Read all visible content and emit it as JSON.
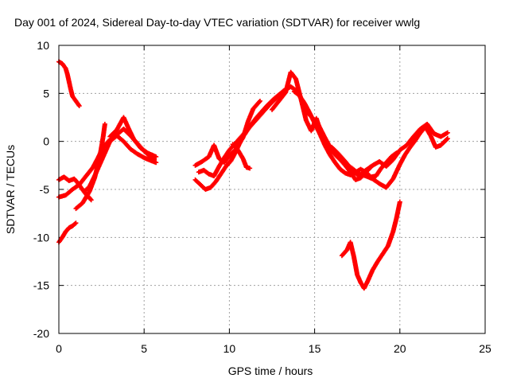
{
  "chart_data": {
    "type": "scatter",
    "title": "Day 001 of 2024, Sidereal Day-to-day VTEC variation (SDTVAR) for receiver wwlg",
    "xlabel": "GPS time / hours",
    "ylabel": "SDTVAR / TECUs",
    "xlim": [
      0,
      25
    ],
    "ylim": [
      -20,
      10
    ],
    "x_ticks": [
      0,
      5,
      10,
      15,
      20,
      25
    ],
    "y_ticks": [
      10,
      5,
      0,
      -5,
      -10,
      -15,
      -20
    ],
    "x_tick_labels": [
      "0",
      "5",
      "10",
      "15",
      "20",
      "25"
    ],
    "y_tick_labels": [
      "10",
      "5",
      "0",
      "-5",
      "-10",
      "-15",
      "-20"
    ],
    "grid": true,
    "marker": "plus",
    "color": "#ff0000",
    "series": [
      {
        "x": [
          0.0,
          0.2,
          0.4,
          0.5,
          0.6,
          0.7,
          0.8,
          1.0,
          1.2
        ],
        "y": [
          8.3,
          8.1,
          7.6,
          7.0,
          6.2,
          5.4,
          4.7,
          4.2,
          3.7
        ]
      },
      {
        "x": [
          0.0,
          0.2,
          0.4,
          0.6,
          0.8,
          1.0
        ],
        "y": [
          -10.5,
          -10.0,
          -9.4,
          -9.0,
          -8.8,
          -8.5
        ]
      },
      {
        "x": [
          0.0,
          0.3,
          0.6,
          0.9,
          1.1,
          1.3,
          1.5,
          1.7,
          1.9
        ],
        "y": [
          -4.0,
          -3.7,
          -4.1,
          -3.9,
          -4.3,
          -4.8,
          -5.3,
          -5.7,
          -6.1
        ]
      },
      {
        "x": [
          0.0,
          0.4,
          0.8,
          1.2,
          1.6,
          2.0,
          2.3,
          2.6,
          3.0,
          3.4,
          3.8,
          4.2,
          4.6,
          5.0,
          5.3,
          5.6
        ],
        "y": [
          -5.8,
          -5.6,
          -5.0,
          -4.5,
          -3.6,
          -2.7,
          -1.7,
          -0.6,
          0.2,
          0.7,
          1.3,
          0.6,
          -0.2,
          -1.0,
          -1.5,
          -1.9
        ]
      },
      {
        "x": [
          1.0,
          1.4,
          1.8,
          2.1,
          2.4,
          2.6,
          2.7
        ],
        "y": [
          -7.0,
          -6.4,
          -5.2,
          -3.8,
          -1.6,
          0.5,
          1.8
        ]
      },
      {
        "x": [
          1.5,
          1.8,
          2.1,
          2.4,
          2.7,
          3.0,
          3.4,
          3.8,
          4.2,
          4.6,
          5.0,
          5.4,
          5.7
        ],
        "y": [
          -5.2,
          -4.7,
          -3.6,
          -2.4,
          -1.2,
          0.0,
          0.6,
          0.0,
          -0.8,
          -1.3,
          -1.7,
          -2.0,
          -2.2
        ]
      },
      {
        "x": [
          3.0,
          3.4,
          3.8,
          4.1,
          4.4,
          4.8,
          5.2,
          5.7
        ],
        "y": [
          0.5,
          1.2,
          2.5,
          1.3,
          0.2,
          -0.7,
          -1.2,
          -1.6
        ]
      },
      {
        "x": [
          8.0,
          8.3,
          8.6,
          8.9,
          9.2,
          9.5,
          9.8,
          10.1,
          10.4,
          10.7,
          11.0,
          11.3,
          11.6,
          11.9,
          12.2,
          12.6,
          13.0,
          13.4
        ],
        "y": [
          -4.0,
          -4.5,
          -5.0,
          -4.8,
          -4.2,
          -3.4,
          -2.6,
          -2.0,
          -1.0,
          0.2,
          1.0,
          1.8,
          2.5,
          3.1,
          3.7,
          4.4,
          5.0,
          5.5
        ]
      },
      {
        "x": [
          8.0,
          8.4,
          8.8,
          9.1,
          9.4,
          9.7,
          10.0,
          10.4,
          10.8,
          11.1,
          11.4,
          11.8
        ],
        "y": [
          -2.5,
          -2.1,
          -1.6,
          -0.4,
          -1.8,
          -2.2,
          -1.5,
          -0.8,
          0.4,
          2.1,
          3.4,
          4.2
        ]
      },
      {
        "x": [
          8.2,
          8.5,
          8.8,
          9.1,
          9.4,
          9.7,
          10.0,
          10.4,
          10.8,
          11.2,
          11.6,
          12.0,
          12.4,
          12.8,
          13.2,
          13.6,
          14.0,
          14.3
        ],
        "y": [
          -3.2,
          -3.0,
          -3.4,
          -3.6,
          -2.6,
          -1.7,
          -0.9,
          -0.1,
          0.7,
          1.5,
          2.3,
          3.1,
          3.9,
          4.6,
          5.3,
          5.7,
          5.2,
          4.1
        ]
      },
      {
        "x": [
          10.2,
          10.5,
          10.8,
          11.0,
          11.2
        ],
        "y": [
          -0.3,
          -0.9,
          -1.8,
          -2.7,
          -2.8
        ]
      },
      {
        "x": [
          12.5,
          12.9,
          13.3,
          13.6,
          13.9,
          14.2,
          14.5,
          14.8,
          15.1,
          15.4
        ],
        "y": [
          3.3,
          4.2,
          5.1,
          7.2,
          6.5,
          4.4,
          2.2,
          1.1,
          2.4,
          0.8
        ]
      },
      {
        "x": [
          13.8,
          14.1,
          14.4,
          14.7,
          15.0,
          15.3,
          15.6,
          15.9,
          16.2,
          16.5,
          16.8,
          17.1,
          17.4,
          17.7,
          18.0,
          18.3,
          18.6,
          18.9,
          19.2,
          19.5,
          19.8
        ],
        "y": [
          5.2,
          4.8,
          4.0,
          3.0,
          1.9,
          0.8,
          -0.4,
          -1.4,
          -2.2,
          -2.9,
          -3.3,
          -3.5,
          -3.2,
          -2.9,
          -3.2,
          -3.7,
          -3.6,
          -2.8,
          -2.2,
          -1.6,
          -1.2
        ]
      },
      {
        "x": [
          14.5,
          14.8,
          15.2,
          15.6,
          16.0,
          16.4,
          16.8,
          17.2,
          17.6,
          18.0,
          18.4,
          18.8,
          19.2,
          19.6,
          20.0,
          20.3,
          20.6,
          20.9,
          21.2,
          21.5,
          21.8,
          22.1,
          22.4,
          22.8
        ],
        "y": [
          3.1,
          2.6,
          1.8,
          0.4,
          -0.9,
          -1.7,
          -2.3,
          -2.8,
          -3.4,
          -3.6,
          -3.9,
          -4.4,
          -4.8,
          -3.9,
          -2.4,
          -1.4,
          -0.6,
          0.1,
          0.9,
          1.5,
          0.6,
          -0.6,
          -0.4,
          0.3
        ]
      },
      {
        "x": [
          16.0,
          16.4,
          16.8,
          17.2,
          17.6,
          18.0,
          18.4,
          18.8,
          19.2,
          19.6,
          20.0,
          20.4,
          20.8,
          21.2,
          21.6,
          22.0,
          22.4,
          22.8
        ],
        "y": [
          -0.6,
          -1.3,
          -2.1,
          -3.0,
          -3.6,
          -3.0,
          -2.5,
          -2.1,
          -2.6,
          -1.9,
          -0.9,
          -0.4,
          0.5,
          1.3,
          1.8,
          0.8,
          0.5,
          0.9
        ]
      },
      {
        "x": [
          15.6,
          15.9,
          16.2,
          16.5,
          16.8,
          17.1,
          17.4,
          17.7,
          18.0,
          18.3
        ],
        "y": [
          -0.2,
          -0.8,
          -1.4,
          -1.9,
          -2.5,
          -3.2,
          -4.0,
          -3.8,
          -3.2,
          -2.7
        ]
      },
      {
        "x": [
          16.6,
          16.9,
          17.1,
          17.3,
          17.5,
          17.7,
          17.9,
          18.1,
          18.4,
          18.7,
          19.0,
          19.3,
          19.6,
          19.8,
          20.0
        ],
        "y": [
          -11.9,
          -11.3,
          -10.5,
          -12.0,
          -13.9,
          -14.7,
          -15.3,
          -14.6,
          -13.4,
          -12.5,
          -11.7,
          -10.9,
          -9.4,
          -8.0,
          -6.3
        ]
      }
    ]
  }
}
